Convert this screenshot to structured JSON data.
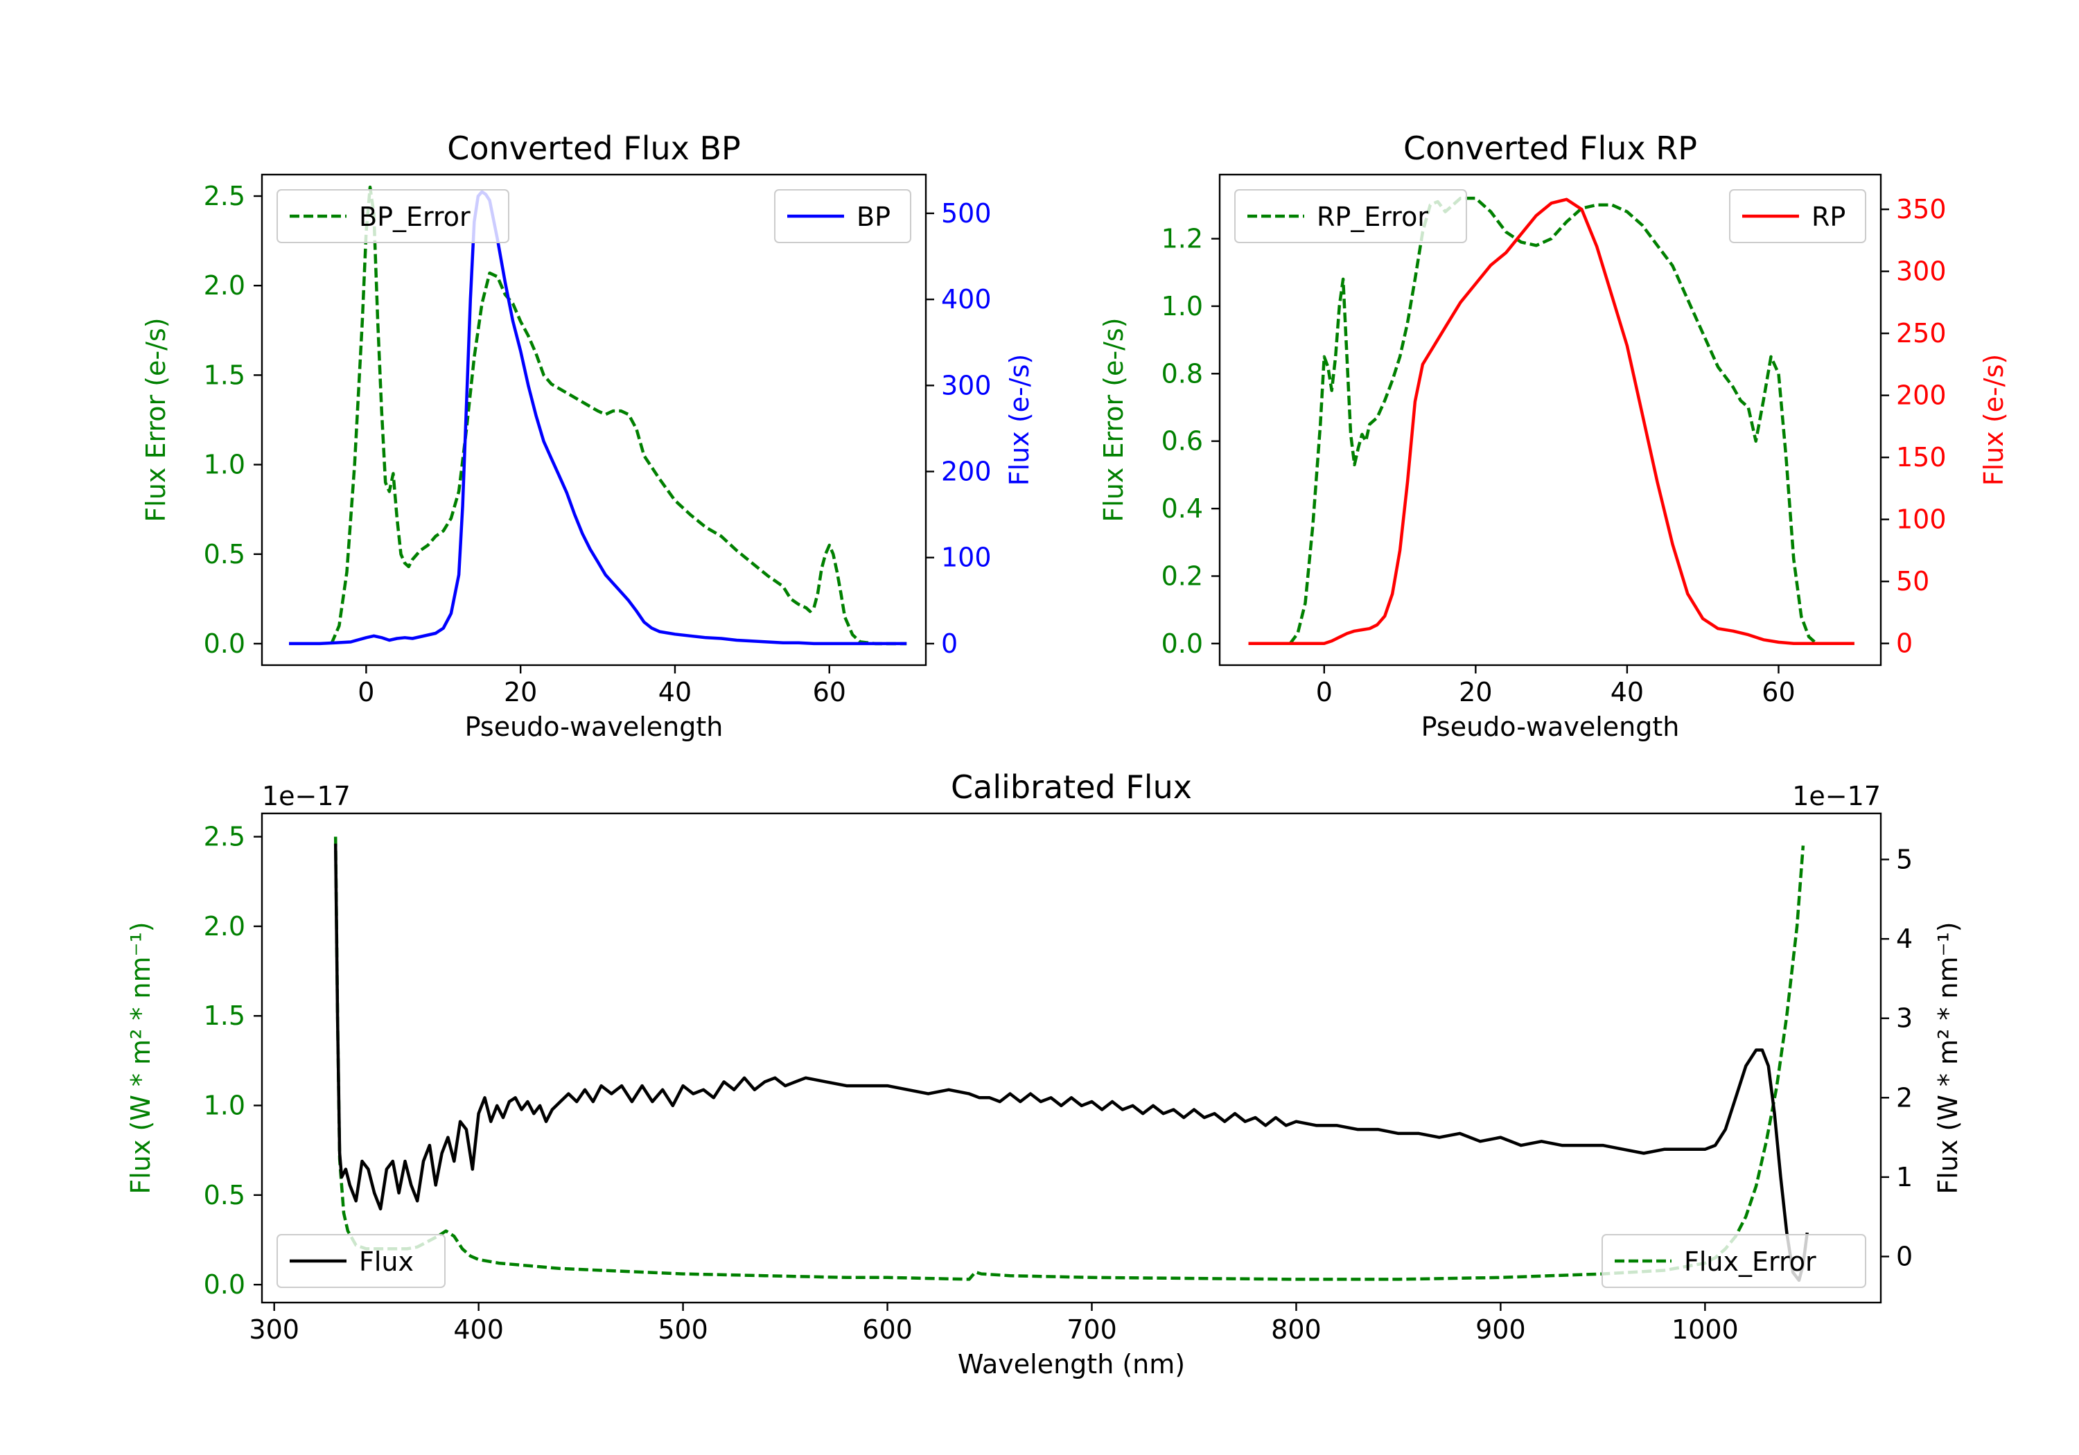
{
  "colors": {
    "green": "#008000",
    "blue": "#0000ff",
    "red": "#ff0000",
    "black": "#000000"
  },
  "chart_data": [
    {
      "id": "bp",
      "type": "line",
      "title": "Converted Flux BP",
      "xlabel": "Pseudo-wavelength",
      "ylabel_left": "Flux Error (e-/s)",
      "ylabel_right": "Flux (e-/s)",
      "xlim": [
        -13.5,
        72.5
      ],
      "ylim_left": [
        -0.12,
        2.62
      ],
      "ylim_right": [
        -25,
        545
      ],
      "xticks": [
        0,
        20,
        40,
        60
      ],
      "yticks_left": [
        0.0,
        0.5,
        1.0,
        1.5,
        2.0,
        2.5
      ],
      "yticks_right": [
        0,
        100,
        200,
        300,
        400,
        500
      ],
      "legend_left": {
        "label": "BP_Error",
        "position": "upper left"
      },
      "legend_right": {
        "label": "BP",
        "position": "upper right"
      },
      "series": [
        {
          "name": "BP_Error",
          "axis": "left",
          "color": "#008000",
          "style": "dashed",
          "x": [
            -4.5,
            -3.5,
            -2.5,
            -1.5,
            -0.5,
            0.0,
            0.5,
            1.0,
            1.5,
            2.0,
            2.5,
            3.0,
            3.5,
            4.0,
            4.5,
            5.0,
            5.5,
            6.0,
            7.0,
            8.0,
            9.0,
            10.0,
            11.0,
            12.0,
            13.0,
            14.0,
            15.0,
            16.0,
            17.0,
            18.0,
            19.0,
            20.0,
            21.0,
            22.0,
            23.0,
            24.0,
            26.0,
            28.0,
            30.0,
            31.0,
            32.0,
            33.0,
            34.0,
            35.0,
            36.0,
            38.0,
            40.0,
            42.0,
            44.0,
            46.0,
            48.0,
            50.0,
            52.0,
            54.0,
            55.0,
            56.0,
            57.0,
            57.5,
            58.0,
            58.5,
            59.0,
            59.5,
            60.0,
            60.5,
            61.0,
            61.5,
            62.0,
            63.0,
            64.0,
            66.0,
            68.0,
            70.0
          ],
          "values": [
            0.0,
            0.1,
            0.4,
            1.0,
            1.8,
            2.3,
            2.55,
            2.4,
            1.8,
            1.3,
            0.9,
            0.85,
            0.95,
            0.7,
            0.5,
            0.45,
            0.43,
            0.47,
            0.52,
            0.55,
            0.6,
            0.63,
            0.7,
            0.85,
            1.2,
            1.6,
            1.9,
            2.07,
            2.05,
            1.95,
            1.9,
            1.8,
            1.72,
            1.62,
            1.5,
            1.45,
            1.4,
            1.35,
            1.3,
            1.28,
            1.3,
            1.3,
            1.28,
            1.2,
            1.05,
            0.92,
            0.8,
            0.72,
            0.65,
            0.6,
            0.52,
            0.45,
            0.38,
            0.32,
            0.25,
            0.22,
            0.2,
            0.18,
            0.2,
            0.28,
            0.42,
            0.5,
            0.55,
            0.5,
            0.4,
            0.28,
            0.15,
            0.05,
            0.01,
            0.0,
            0.0,
            0.0
          ]
        },
        {
          "name": "BP",
          "axis": "right",
          "color": "#0000ff",
          "style": "solid",
          "x": [
            -10,
            -8,
            -6,
            -4,
            -2,
            0,
            1,
            2,
            3,
            4,
            5,
            6,
            7,
            8,
            9,
            10,
            11,
            12,
            12.5,
            13,
            13.5,
            14,
            14.5,
            15,
            15.5,
            16,
            17,
            18,
            19,
            20,
            21,
            22,
            23,
            24,
            25,
            26,
            27,
            28,
            29,
            30,
            31,
            32,
            33,
            34,
            35,
            36,
            37,
            38,
            40,
            42,
            44,
            46,
            48,
            50,
            52,
            54,
            56,
            58,
            60,
            62,
            64,
            66,
            68,
            70
          ],
          "values": [
            0,
            0,
            0,
            1,
            2,
            7,
            9,
            7,
            4,
            6,
            7,
            6,
            8,
            10,
            12,
            18,
            35,
            80,
            160,
            280,
            400,
            490,
            520,
            525,
            522,
            515,
            470,
            420,
            375,
            340,
            300,
            265,
            235,
            215,
            195,
            175,
            150,
            128,
            110,
            95,
            80,
            70,
            60,
            50,
            38,
            25,
            18,
            14,
            11,
            9,
            7,
            6,
            4,
            3,
            2,
            1,
            1,
            0,
            0,
            0,
            0,
            0,
            0,
            0
          ]
        }
      ]
    },
    {
      "id": "rp",
      "type": "line",
      "title": "Converted Flux RP",
      "xlabel": "Pseudo-wavelength",
      "ylabel_left": "Flux Error (e-/s)",
      "ylabel_right": "Flux (e-/s)",
      "xlim": [
        -13.8,
        73.5
      ],
      "ylim_left": [
        -0.064,
        1.39
      ],
      "ylim_right": [
        -17.5,
        378
      ],
      "xticks": [
        0,
        20,
        40,
        60
      ],
      "yticks_left": [
        0.0,
        0.2,
        0.4,
        0.6,
        0.8,
        1.0,
        1.2
      ],
      "yticks_right": [
        0,
        50,
        100,
        150,
        200,
        250,
        300,
        350
      ],
      "legend_left": {
        "label": "RP_Error",
        "position": "upper left"
      },
      "legend_right": {
        "label": "RP",
        "position": "upper right"
      },
      "series": [
        {
          "name": "RP_Error",
          "axis": "left",
          "color": "#008000",
          "style": "dashed",
          "x": [
            -4.5,
            -3.5,
            -2.5,
            -1.5,
            -0.5,
            0.0,
            0.5,
            1.0,
            1.5,
            2.0,
            2.5,
            3.0,
            3.5,
            4.0,
            4.5,
            5.0,
            5.5,
            6.0,
            7.0,
            8.0,
            9.0,
            10.0,
            11.0,
            12.0,
            13.0,
            14.0,
            15.0,
            16.0,
            18.0,
            20.0,
            22.0,
            24.0,
            26.0,
            28.0,
            30.0,
            32.0,
            34.0,
            36.0,
            38.0,
            40.0,
            42.0,
            44.0,
            46.0,
            48.0,
            50.0,
            52.0,
            54.0,
            55.0,
            56.0,
            57.0,
            58.0,
            59.0,
            60.0,
            61.0,
            62.0,
            63.0,
            64.0,
            65.0,
            66.0,
            68.0,
            70.0
          ],
          "values": [
            0.0,
            0.03,
            0.12,
            0.35,
            0.65,
            0.85,
            0.82,
            0.75,
            0.85,
            1.0,
            1.08,
            0.85,
            0.62,
            0.53,
            0.58,
            0.62,
            0.6,
            0.65,
            0.67,
            0.72,
            0.78,
            0.85,
            0.95,
            1.08,
            1.22,
            1.3,
            1.31,
            1.28,
            1.32,
            1.32,
            1.28,
            1.22,
            1.19,
            1.18,
            1.2,
            1.25,
            1.29,
            1.3,
            1.3,
            1.28,
            1.24,
            1.18,
            1.12,
            1.02,
            0.92,
            0.82,
            0.76,
            0.72,
            0.7,
            0.6,
            0.72,
            0.85,
            0.8,
            0.55,
            0.25,
            0.08,
            0.02,
            0.0,
            0.0,
            0.0,
            0.0
          ]
        },
        {
          "name": "RP",
          "axis": "right",
          "color": "#ff0000",
          "style": "solid",
          "x": [
            -10,
            -5,
            -2,
            0,
            1,
            2,
            3,
            4,
            5,
            6,
            7,
            8,
            9,
            10,
            11,
            12,
            13,
            14,
            16,
            18,
            20,
            22,
            24,
            26,
            28,
            30,
            32,
            34,
            36,
            38,
            40,
            42,
            44,
            46,
            48,
            50,
            52,
            54,
            56,
            58,
            60,
            62,
            64,
            66,
            68,
            70
          ],
          "values": [
            0,
            0,
            0,
            0,
            2,
            5,
            8,
            10,
            11,
            12,
            15,
            22,
            40,
            75,
            130,
            195,
            225,
            235,
            255,
            275,
            290,
            305,
            315,
            330,
            345,
            355,
            358,
            350,
            320,
            280,
            240,
            185,
            130,
            80,
            40,
            20,
            12,
            10,
            7,
            3,
            1,
            0,
            0,
            0,
            0,
            0
          ]
        }
      ]
    },
    {
      "id": "calibrated",
      "type": "line",
      "title": "Calibrated Flux",
      "xlabel": "Wavelength (nm)",
      "ylabel_left": "Flux (W * m² * nm⁻¹)",
      "ylabel_right": "Flux (W * m² * nm⁻¹)",
      "offset_left": "1e−17",
      "offset_right": "1e−17",
      "xlim": [
        294,
        1086
      ],
      "ylim_left": [
        -0.1,
        2.63
      ],
      "ylim_right": [
        -0.58,
        5.58
      ],
      "xticks": [
        300,
        400,
        500,
        600,
        700,
        800,
        900,
        1000
      ],
      "yticks_left": [
        0.0,
        0.5,
        1.0,
        1.5,
        2.0,
        2.5
      ],
      "yticks_right": [
        0,
        1,
        2,
        3,
        4,
        5
      ],
      "legend_left": {
        "label": "Flux",
        "position": "lower left"
      },
      "legend_right": {
        "label": "Flux_Error",
        "position": "lower right"
      },
      "series": [
        {
          "name": "Flux",
          "axis": "right",
          "color": "#000000",
          "style": "solid",
          "x": [
            330,
            331,
            332,
            333,
            335,
            337,
            340,
            343,
            346,
            349,
            352,
            355,
            358,
            361,
            364,
            367,
            370,
            373,
            376,
            379,
            382,
            385,
            388,
            391,
            394,
            397,
            400,
            403,
            406,
            409,
            412,
            415,
            418,
            421,
            424,
            427,
            430,
            433,
            436,
            440,
            444,
            448,
            452,
            456,
            460,
            465,
            470,
            475,
            480,
            485,
            490,
            495,
            500,
            505,
            510,
            515,
            520,
            525,
            530,
            535,
            540,
            545,
            550,
            555,
            560,
            570,
            580,
            590,
            600,
            610,
            620,
            630,
            640,
            645,
            650,
            655,
            660,
            665,
            670,
            675,
            680,
            685,
            690,
            695,
            700,
            705,
            710,
            715,
            720,
            725,
            730,
            735,
            740,
            745,
            750,
            755,
            760,
            765,
            770,
            775,
            780,
            785,
            790,
            795,
            800,
            810,
            820,
            830,
            840,
            850,
            860,
            870,
            880,
            890,
            900,
            910,
            920,
            930,
            940,
            950,
            960,
            970,
            980,
            990,
            1000,
            1005,
            1010,
            1015,
            1020,
            1025,
            1028,
            1031,
            1034,
            1037,
            1040,
            1043,
            1046,
            1048,
            1050
          ],
          "values": [
            5.2,
            3.0,
            1.3,
            1.0,
            1.1,
            0.9,
            0.7,
            1.2,
            1.1,
            0.8,
            0.6,
            1.1,
            1.2,
            0.8,
            1.2,
            0.9,
            0.7,
            1.2,
            1.4,
            0.9,
            1.3,
            1.5,
            1.2,
            1.7,
            1.6,
            1.1,
            1.8,
            2.0,
            1.7,
            1.9,
            1.75,
            1.95,
            2.0,
            1.85,
            1.95,
            1.8,
            1.9,
            1.7,
            1.85,
            1.95,
            2.05,
            1.95,
            2.1,
            1.95,
            2.15,
            2.05,
            2.15,
            1.95,
            2.15,
            1.95,
            2.1,
            1.9,
            2.15,
            2.05,
            2.1,
            2.0,
            2.2,
            2.1,
            2.25,
            2.1,
            2.2,
            2.25,
            2.15,
            2.2,
            2.25,
            2.2,
            2.15,
            2.15,
            2.15,
            2.1,
            2.05,
            2.1,
            2.05,
            2.0,
            2.0,
            1.95,
            2.05,
            1.95,
            2.05,
            1.95,
            2.0,
            1.9,
            2.0,
            1.9,
            1.95,
            1.85,
            1.95,
            1.85,
            1.9,
            1.8,
            1.9,
            1.8,
            1.85,
            1.75,
            1.85,
            1.75,
            1.8,
            1.7,
            1.8,
            1.7,
            1.75,
            1.65,
            1.75,
            1.65,
            1.7,
            1.65,
            1.65,
            1.6,
            1.6,
            1.55,
            1.55,
            1.5,
            1.55,
            1.45,
            1.5,
            1.4,
            1.45,
            1.4,
            1.4,
            1.4,
            1.35,
            1.3,
            1.35,
            1.35,
            1.35,
            1.4,
            1.6,
            2.0,
            2.4,
            2.6,
            2.6,
            2.4,
            1.8,
            1.0,
            0.3,
            -0.2,
            -0.3,
            -0.1,
            0.3
          ]
        },
        {
          "name": "Flux_Error",
          "axis": "left",
          "color": "#008000",
          "style": "dashed",
          "x": [
            330,
            331,
            332,
            334,
            336,
            340,
            345,
            350,
            355,
            360,
            365,
            370,
            375,
            380,
            384,
            388,
            392,
            396,
            400,
            410,
            420,
            430,
            440,
            460,
            480,
            500,
            520,
            540,
            560,
            580,
            600,
            620,
            640,
            643,
            646,
            660,
            700,
            750,
            800,
            850,
            900,
            950,
            980,
            1000,
            1005,
            1010,
            1015,
            1020,
            1025,
            1030,
            1035,
            1040,
            1045,
            1048
          ],
          "values": [
            2.5,
            1.5,
            0.7,
            0.4,
            0.3,
            0.22,
            0.2,
            0.2,
            0.2,
            0.2,
            0.2,
            0.21,
            0.24,
            0.27,
            0.3,
            0.27,
            0.2,
            0.16,
            0.14,
            0.12,
            0.11,
            0.1,
            0.09,
            0.08,
            0.07,
            0.06,
            0.055,
            0.05,
            0.045,
            0.04,
            0.04,
            0.035,
            0.03,
            0.07,
            0.06,
            0.05,
            0.04,
            0.035,
            0.03,
            0.03,
            0.04,
            0.06,
            0.08,
            0.12,
            0.15,
            0.2,
            0.27,
            0.38,
            0.55,
            0.8,
            1.1,
            1.5,
            2.0,
            2.45
          ]
        }
      ]
    }
  ]
}
